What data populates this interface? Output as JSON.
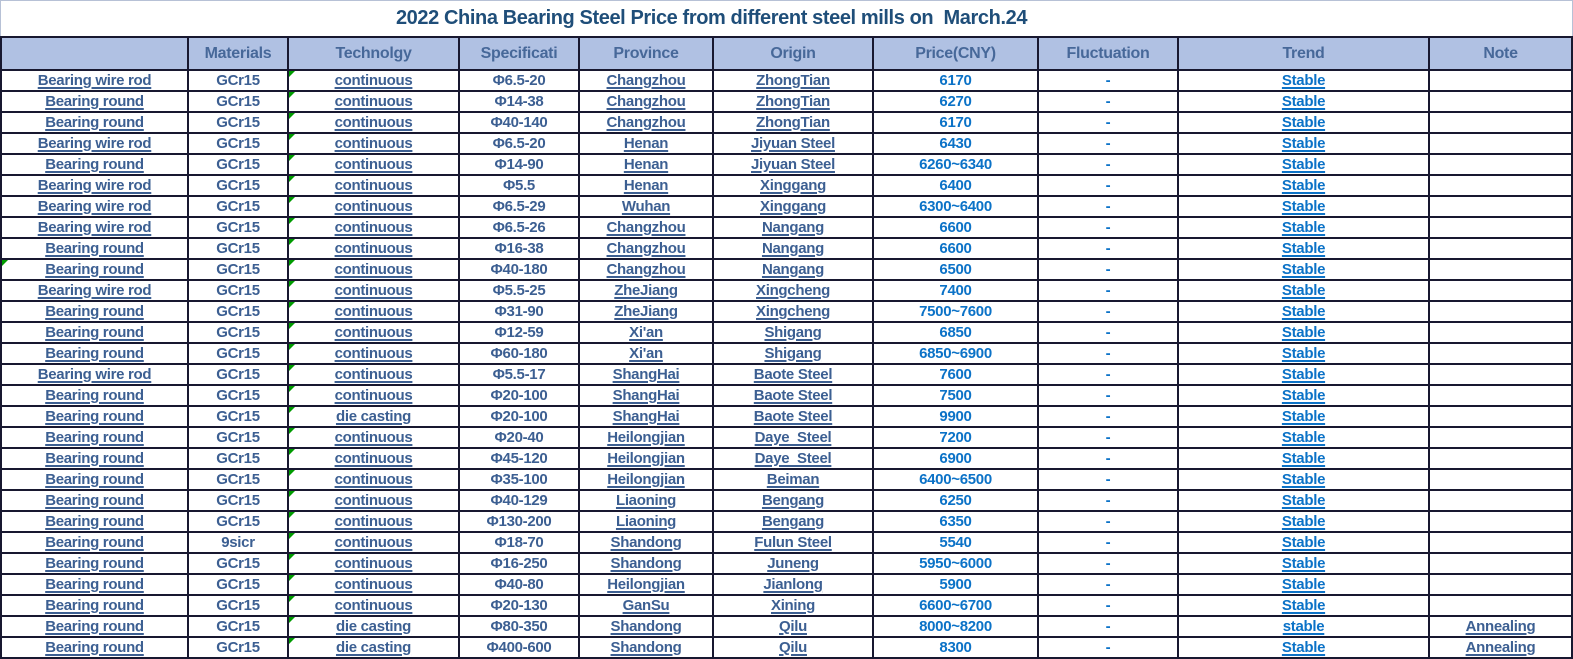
{
  "title": "2022 China Bearing Steel Price from different steel mills on  March.24",
  "table": {
    "columns": [
      {
        "key": "product",
        "label": ""
      },
      {
        "key": "materials",
        "label": "Materials"
      },
      {
        "key": "technology",
        "label": "Technolgy"
      },
      {
        "key": "specification",
        "label": "Specificati"
      },
      {
        "key": "province",
        "label": "Province"
      },
      {
        "key": "origin",
        "label": "Origin"
      },
      {
        "key": "price",
        "label": "Price(CNY)"
      },
      {
        "key": "fluctuation",
        "label": "Fluctuation"
      },
      {
        "key": "trend",
        "label": "Trend"
      },
      {
        "key": "note",
        "label": "Note"
      }
    ],
    "rows": [
      {
        "product": "Bearing wire rod",
        "materials": "GCr15",
        "technology": "continuous",
        "specification": "Φ6.5-20",
        "province": "Changzhou",
        "origin": "ZhongTian",
        "price": "6170",
        "fluctuation": "-",
        "trend": "Stable",
        "note": ""
      },
      {
        "product": "Bearing round",
        "materials": "GCr15",
        "technology": "continuous",
        "specification": "Φ14-38",
        "province": "Changzhou",
        "origin": "ZhongTian",
        "price": "6270",
        "fluctuation": "-",
        "trend": "Stable",
        "note": ""
      },
      {
        "product": "Bearing round",
        "materials": "GCr15",
        "technology": "continuous",
        "specification": "Φ40-140",
        "province": "Changzhou",
        "origin": "ZhongTian",
        "price": "6170",
        "fluctuation": "-",
        "trend": "Stable",
        "note": ""
      },
      {
        "product": "Bearing wire rod",
        "materials": "GCr15",
        "technology": "continuous",
        "specification": "Φ6.5-20",
        "province": "Henan",
        "origin": "Jiyuan Steel",
        "price": "6430",
        "fluctuation": "-",
        "trend": "Stable",
        "note": ""
      },
      {
        "product": "Bearing round",
        "materials": "GCr15",
        "technology": "continuous",
        "specification": "Φ14-90",
        "province": "Henan",
        "origin": "Jiyuan Steel",
        "price": "6260~6340",
        "fluctuation": "-",
        "trend": "Stable",
        "note": ""
      },
      {
        "product": "Bearing wire rod",
        "materials": "GCr15",
        "technology": "continuous",
        "specification": "Φ5.5",
        "province": "Henan",
        "origin": "Xinggang",
        "price": "6400",
        "fluctuation": "-",
        "trend": "Stable",
        "note": ""
      },
      {
        "product": "Bearing wire rod",
        "materials": "GCr15",
        "technology": "continuous",
        "specification": "Φ6.5-29",
        "province": "Wuhan",
        "origin": "Xinggang",
        "price": "6300~6400",
        "fluctuation": "-",
        "trend": "Stable",
        "note": ""
      },
      {
        "product": "Bearing wire rod",
        "materials": "GCr15",
        "technology": "continuous",
        "specification": "Φ6.5-26",
        "province": "Changzhou",
        "origin": "Nangang",
        "price": "6600",
        "fluctuation": "-",
        "trend": "Stable",
        "note": ""
      },
      {
        "product": "Bearing round",
        "materials": "GCr15",
        "technology": "continuous",
        "specification": "Φ16-38",
        "province": "Changzhou",
        "origin": "Nangang",
        "price": "6600",
        "fluctuation": "-",
        "trend": "Stable",
        "note": ""
      },
      {
        "product": "Bearing round",
        "materials": "GCr15",
        "technology": "continuous",
        "specification": "Φ40-180",
        "province": "Changzhou",
        "origin": "Nangang",
        "price": "6500",
        "fluctuation": "-",
        "trend": "Stable",
        "note": "",
        "row_indicator": true
      },
      {
        "product": "Bearing wire rod",
        "materials": "GCr15",
        "technology": "continuous",
        "specification": "Φ5.5-25",
        "province": "ZheJiang",
        "origin": "Xingcheng",
        "price": "7400",
        "fluctuation": "-",
        "trend": "Stable",
        "note": ""
      },
      {
        "product": "Bearing round",
        "materials": "GCr15",
        "technology": "continuous",
        "specification": "Φ31-90",
        "province": "ZheJiang",
        "origin": "Xingcheng",
        "price": "7500~7600",
        "fluctuation": "-",
        "trend": "Stable",
        "note": ""
      },
      {
        "product": "Bearing round",
        "materials": "GCr15",
        "technology": "continuous",
        "specification": "Φ12-59",
        "province": "Xi'an",
        "origin": "Shigang",
        "price": "6850",
        "fluctuation": "-",
        "trend": "Stable",
        "note": ""
      },
      {
        "product": "Bearing round",
        "materials": "GCr15",
        "technology": "continuous",
        "specification": "Φ60-180",
        "province": "Xi'an",
        "origin": "Shigang",
        "price": "6850~6900",
        "fluctuation": "-",
        "trend": "Stable",
        "note": ""
      },
      {
        "product": "Bearing wire rod",
        "materials": "GCr15",
        "technology": "continuous",
        "specification": "Φ5.5-17",
        "province": "ShangHai",
        "origin": "Baote Steel",
        "price": "7600",
        "fluctuation": "-",
        "trend": "Stable",
        "note": ""
      },
      {
        "product": "Bearing round",
        "materials": "GCr15",
        "technology": "continuous",
        "specification": "Φ20-100",
        "province": "ShangHai",
        "origin": "Baote Steel",
        "price": "7500",
        "fluctuation": "-",
        "trend": "Stable",
        "note": ""
      },
      {
        "product": "Bearing round",
        "materials": "GCr15",
        "technology": "die casting",
        "specification": "Φ20-100",
        "province": "ShangHai",
        "origin": "Baote Steel",
        "price": "9900",
        "fluctuation": "-",
        "trend": "Stable",
        "note": ""
      },
      {
        "product": "Bearing round",
        "materials": "GCr15",
        "technology": "continuous",
        "specification": "Φ20-40",
        "province": "Heilongjian",
        "origin": "Daye  Steel",
        "price": "7200",
        "fluctuation": "-",
        "trend": "Stable",
        "note": ""
      },
      {
        "product": "Bearing round",
        "materials": "GCr15",
        "technology": "continuous",
        "specification": "Φ45-120",
        "province": "Heilongjian",
        "origin": "Daye  Steel",
        "price": "6900",
        "fluctuation": "-",
        "trend": "Stable",
        "note": ""
      },
      {
        "product": "Bearing round",
        "materials": "GCr15",
        "technology": "continuous",
        "specification": "Φ35-100",
        "province": "Heilongjian",
        "origin": "Beiman",
        "price": "6400~6500",
        "fluctuation": "-",
        "trend": "Stable",
        "note": ""
      },
      {
        "product": "Bearing round",
        "materials": "GCr15",
        "technology": "continuous",
        "specification": "Φ40-129",
        "province": "Liaoning",
        "origin": "Bengang",
        "price": "6250",
        "fluctuation": "-",
        "trend": "Stable",
        "note": ""
      },
      {
        "product": "Bearing round",
        "materials": "GCr15",
        "technology": "continuous",
        "specification": "Φ130-200",
        "province": "Liaoning",
        "origin": "Bengang",
        "price": "6350",
        "fluctuation": "-",
        "trend": "Stable",
        "note": ""
      },
      {
        "product": "Bearing round",
        "materials": "9sicr",
        "technology": "continuous",
        "specification": "Φ18-70",
        "province": "Shandong",
        "origin": "Fulun Steel",
        "price": "5540",
        "fluctuation": "-",
        "trend": "Stable",
        "note": ""
      },
      {
        "product": "Bearing round",
        "materials": "GCr15",
        "technology": "continuous",
        "specification": "Φ16-250",
        "province": "Shandong",
        "origin": "Juneng",
        "price": "5950~6000",
        "fluctuation": "-",
        "trend": "Stable",
        "note": ""
      },
      {
        "product": "Bearing round",
        "materials": "GCr15",
        "technology": "continuous",
        "specification": "Φ40-80",
        "province": "Heilongjian",
        "origin": "Jianlong",
        "price": "5900",
        "fluctuation": "-",
        "trend": "Stable",
        "note": ""
      },
      {
        "product": "Bearing round",
        "materials": "GCr15",
        "technology": "continuous",
        "specification": "Φ20-130",
        "province": "GanSu",
        "origin": "Xining",
        "price": "6600~6700",
        "fluctuation": "-",
        "trend": "Stable",
        "note": ""
      },
      {
        "product": "Bearing round",
        "materials": "GCr15",
        "technology": "die casting",
        "specification": "Φ80-350",
        "province": "Shandong",
        "origin": "Qilu",
        "price": "8000~8200",
        "fluctuation": "-",
        "trend": "stable",
        "note": "Annealing"
      },
      {
        "product": "Bearing round",
        "materials": "GCr15",
        "technology": "die casting",
        "specification": "Φ400-600",
        "province": "Shandong",
        "origin": "Qilu",
        "price": "8300",
        "fluctuation": "-",
        "trend": "Stable",
        "note": "Annealing"
      }
    ]
  },
  "colors": {
    "title_text": "#1F4E79",
    "header_bg": "#B0C1E3",
    "header_text": "#476899",
    "cell_text_dark": "#3C5F92",
    "cell_text_bright": "#0B72C7",
    "grid_border": "#181830",
    "error_indicator": "#009B00"
  },
  "icons": {
    "error_indicator": "green-triangle-icon"
  }
}
